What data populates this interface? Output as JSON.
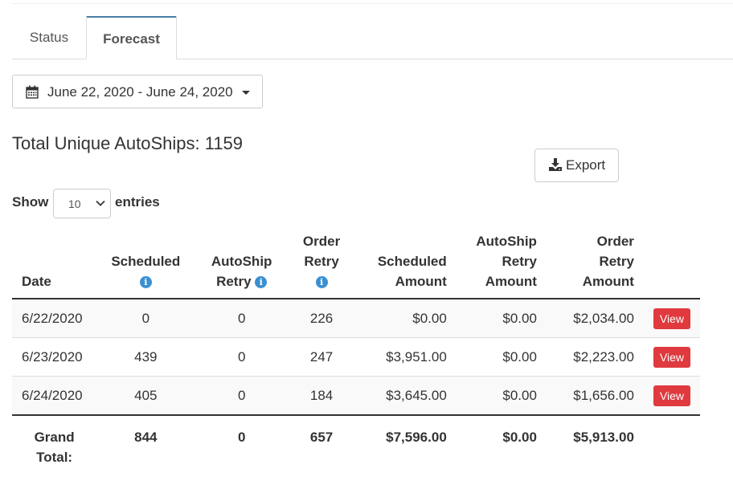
{
  "tabs": [
    {
      "label": "Status",
      "active": false
    },
    {
      "label": "Forecast",
      "active": true
    }
  ],
  "date_range": {
    "label": "June 22, 2020 - June 24, 2020",
    "icon": "calendar-icon"
  },
  "summary": {
    "title": "Total Unique AutoShips: 1159"
  },
  "export": {
    "label": "Export",
    "icon": "download-icon"
  },
  "length": {
    "show_label": "Show",
    "value": "10",
    "entries_label": "entries"
  },
  "table": {
    "headers": {
      "date": "Date",
      "scheduled": "Scheduled",
      "autoship_retry_1": "AutoShip",
      "autoship_retry_2": "Retry",
      "order_retry_1": "Order",
      "order_retry_2": "Retry",
      "scheduled_amount_1": "Scheduled",
      "scheduled_amount_2": "Amount",
      "autoship_retry_amount_1": "AutoShip",
      "autoship_retry_amount_2": "Retry",
      "autoship_retry_amount_3": "Amount",
      "order_retry_amount_1": "Order",
      "order_retry_amount_2": "Retry",
      "order_retry_amount_3": "Amount",
      "info_glyph": "i"
    },
    "rows": [
      {
        "date": "6/22/2020",
        "scheduled": "0",
        "autoship_retry": "0",
        "order_retry": "226",
        "scheduled_amount": "$0.00",
        "autoship_retry_amount": "$0.00",
        "order_retry_amount": "$2,034.00",
        "action": "View"
      },
      {
        "date": "6/23/2020",
        "scheduled": "439",
        "autoship_retry": "0",
        "order_retry": "247",
        "scheduled_amount": "$3,951.00",
        "autoship_retry_amount": "$0.00",
        "order_retry_amount": "$2,223.00",
        "action": "View"
      },
      {
        "date": "6/24/2020",
        "scheduled": "405",
        "autoship_retry": "0",
        "order_retry": "184",
        "scheduled_amount": "$3,645.00",
        "autoship_retry_amount": "$0.00",
        "order_retry_amount": "$1,656.00",
        "action": "View"
      }
    ],
    "footer": {
      "label_1": "Grand",
      "label_2": "Total:",
      "scheduled": "844",
      "autoship_retry": "0",
      "order_retry": "657",
      "scheduled_amount": "$7,596.00",
      "autoship_retry_amount": "$0.00",
      "order_retry_amount": "$5,913.00"
    }
  },
  "colors": {
    "tab_accent": "#4a7fa8",
    "info": "#3b8fd1",
    "view_button": "#e0393e"
  }
}
